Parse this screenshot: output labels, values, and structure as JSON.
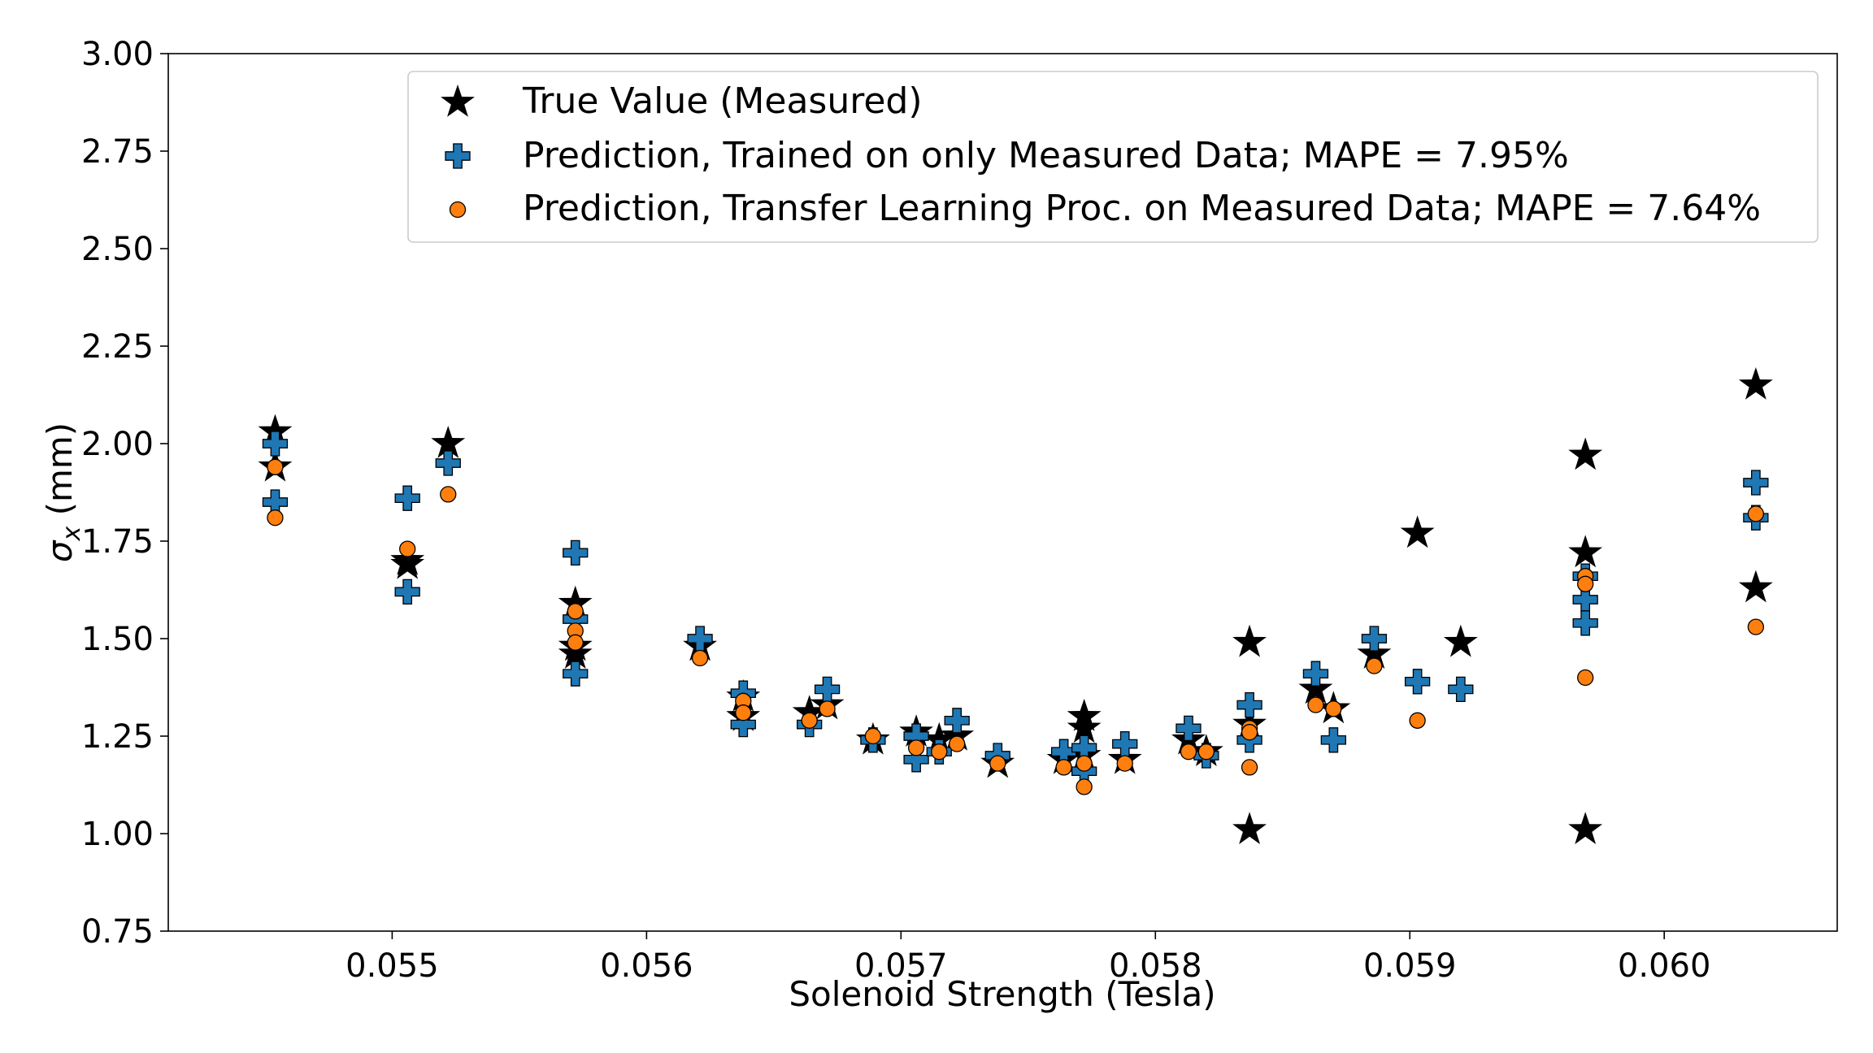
{
  "chart_data": {
    "type": "scatter",
    "title": "",
    "xlabel": "Solenoid Strength (Tesla)",
    "ylabel_symbol": "σ",
    "ylabel_sub": "x",
    "ylabel_unit": " (mm)",
    "xlim": [
      0.05412,
      0.06068
    ],
    "ylim": [
      0.75,
      3.0
    ],
    "xticks": [
      0.055,
      0.056,
      0.057,
      0.058,
      0.059,
      0.06
    ],
    "xtick_labels": [
      "0.055",
      "0.056",
      "0.057",
      "0.058",
      "0.059",
      "0.060"
    ],
    "yticks": [
      0.75,
      1.0,
      1.25,
      1.5,
      1.75,
      2.0,
      2.25,
      2.5,
      2.75,
      3.0
    ],
    "ytick_labels": [
      "0.75",
      "1.00",
      "1.25",
      "1.50",
      "1.75",
      "2.00",
      "2.25",
      "2.50",
      "2.75",
      "3.00"
    ],
    "grid": false,
    "legend_position": "top-right",
    "series": [
      {
        "name": "True Value (Measured)",
        "marker": "star",
        "color": "#000000",
        "points": [
          [
            0.05454,
            2.03
          ],
          [
            0.05454,
            1.94
          ],
          [
            0.05506,
            1.7
          ],
          [
            0.05506,
            1.69
          ],
          [
            0.05522,
            2.0
          ],
          [
            0.05572,
            1.59
          ],
          [
            0.05572,
            1.48
          ],
          [
            0.05572,
            1.46
          ],
          [
            0.05621,
            1.48
          ],
          [
            0.05638,
            1.35
          ],
          [
            0.05638,
            1.3
          ],
          [
            0.05664,
            1.31
          ],
          [
            0.05671,
            1.33
          ],
          [
            0.05689,
            1.24
          ],
          [
            0.05706,
            1.26
          ],
          [
            0.05715,
            1.24
          ],
          [
            0.05722,
            1.25
          ],
          [
            0.05738,
            1.18
          ],
          [
            0.05764,
            1.19
          ],
          [
            0.05772,
            1.3
          ],
          [
            0.05772,
            1.27
          ],
          [
            0.05772,
            1.2
          ],
          [
            0.05788,
            1.19
          ],
          [
            0.05813,
            1.24
          ],
          [
            0.0582,
            1.21
          ],
          [
            0.05837,
            1.49
          ],
          [
            0.05837,
            1.28
          ],
          [
            0.05837,
            1.01
          ],
          [
            0.05863,
            1.37
          ],
          [
            0.0587,
            1.32
          ],
          [
            0.05886,
            1.46
          ],
          [
            0.05903,
            1.77
          ],
          [
            0.0592,
            1.49
          ],
          [
            0.05969,
            1.97
          ],
          [
            0.05969,
            1.72
          ],
          [
            0.05969,
            1.01
          ],
          [
            0.06036,
            2.15
          ],
          [
            0.06036,
            1.63
          ]
        ]
      },
      {
        "name": "Prediction, Trained on only Measured Data; MAPE = 7.95%",
        "marker": "plus",
        "color": "#1f77b4",
        "points": [
          [
            0.05454,
            2.0
          ],
          [
            0.05454,
            1.85
          ],
          [
            0.05506,
            1.86
          ],
          [
            0.05506,
            1.62
          ],
          [
            0.05522,
            1.95
          ],
          [
            0.05572,
            1.72
          ],
          [
            0.05572,
            1.55
          ],
          [
            0.05572,
            1.41
          ],
          [
            0.05621,
            1.5
          ],
          [
            0.05638,
            1.36
          ],
          [
            0.05638,
            1.28
          ],
          [
            0.05664,
            1.28
          ],
          [
            0.05671,
            1.37
          ],
          [
            0.05689,
            1.24
          ],
          [
            0.05706,
            1.25
          ],
          [
            0.05706,
            1.19
          ],
          [
            0.05715,
            1.21
          ],
          [
            0.05722,
            1.29
          ],
          [
            0.05738,
            1.2
          ],
          [
            0.05764,
            1.21
          ],
          [
            0.05772,
            1.22
          ],
          [
            0.05772,
            1.16
          ],
          [
            0.05788,
            1.23
          ],
          [
            0.05813,
            1.27
          ],
          [
            0.0582,
            1.2
          ],
          [
            0.05837,
            1.33
          ],
          [
            0.05837,
            1.24
          ],
          [
            0.05863,
            1.41
          ],
          [
            0.0587,
            1.24
          ],
          [
            0.05886,
            1.5
          ],
          [
            0.05903,
            1.39
          ],
          [
            0.0592,
            1.37
          ],
          [
            0.05969,
            1.66
          ],
          [
            0.05969,
            1.6
          ],
          [
            0.05969,
            1.54
          ],
          [
            0.06036,
            1.9
          ],
          [
            0.06036,
            1.81
          ]
        ]
      },
      {
        "name": "Prediction, Transfer Learning Proc. on Measured Data; MAPE = 7.64%",
        "marker": "circle",
        "color": "#ff7f0e",
        "points": [
          [
            0.05454,
            1.94
          ],
          [
            0.05454,
            1.81
          ],
          [
            0.05506,
            1.73
          ],
          [
            0.05522,
            1.87
          ],
          [
            0.05572,
            1.57
          ],
          [
            0.05572,
            1.52
          ],
          [
            0.05572,
            1.49
          ],
          [
            0.05621,
            1.45
          ],
          [
            0.05638,
            1.34
          ],
          [
            0.05638,
            1.31
          ],
          [
            0.05664,
            1.29
          ],
          [
            0.05671,
            1.32
          ],
          [
            0.05689,
            1.25
          ],
          [
            0.05706,
            1.22
          ],
          [
            0.05715,
            1.21
          ],
          [
            0.05722,
            1.23
          ],
          [
            0.05738,
            1.18
          ],
          [
            0.05764,
            1.17
          ],
          [
            0.05772,
            1.18
          ],
          [
            0.05772,
            1.12
          ],
          [
            0.05788,
            1.18
          ],
          [
            0.05813,
            1.21
          ],
          [
            0.0582,
            1.21
          ],
          [
            0.05837,
            1.27
          ],
          [
            0.05837,
            1.26
          ],
          [
            0.05837,
            1.17
          ],
          [
            0.05863,
            1.33
          ],
          [
            0.0587,
            1.32
          ],
          [
            0.05886,
            1.43
          ],
          [
            0.05903,
            1.29
          ],
          [
            0.05969,
            1.66
          ],
          [
            0.05969,
            1.64
          ],
          [
            0.05969,
            1.4
          ],
          [
            0.06036,
            1.82
          ],
          [
            0.06036,
            1.53
          ]
        ]
      }
    ]
  }
}
